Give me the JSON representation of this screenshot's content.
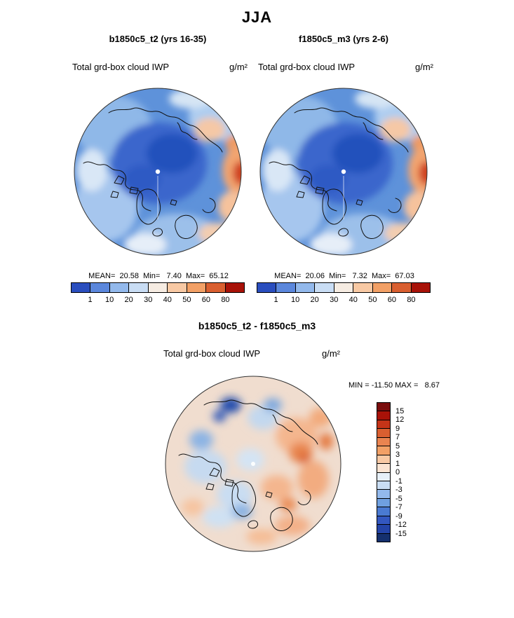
{
  "title": "JJA",
  "panels": [
    {
      "title": "b1850c5_t2 (yrs 16-35)",
      "field": "Total grd-box cloud IWP",
      "units": "g/m²",
      "stats": "MEAN=  20.58  Min=   7.40  Max=  65.12"
    },
    {
      "title": "f1850c5_m3 (yrs 2-6)",
      "field": "Total grd-box cloud IWP",
      "units": "g/m²",
      "stats": "MEAN=  20.06  Min=   7.32  Max=  67.03"
    }
  ],
  "colorbar": {
    "ticks": [
      "1",
      "10",
      "20",
      "30",
      "40",
      "50",
      "60",
      "80"
    ],
    "colors": [
      "#2a4ebe",
      "#5b87dc",
      "#93b9ec",
      "#c9ddf4",
      "#f6ece2",
      "#f8c9a4",
      "#f2a066",
      "#d95f30",
      "#a81208"
    ]
  },
  "diff": {
    "title": "b1850c5_t2 - f1850c5_m3",
    "field": "Total grd-box cloud IWP",
    "units": "g/m²",
    "minmax": "MIN = -11.50 MAX =   8.67",
    "colorbar": {
      "ticks": [
        "15",
        "12",
        "9",
        "7",
        "5",
        "3",
        "1",
        "0",
        "-1",
        "-3",
        "-5",
        "-7",
        "-9",
        "-12",
        "-15"
      ],
      "colors": [
        "#7a0d0d",
        "#a81208",
        "#c53418",
        "#d95f30",
        "#ea8450",
        "#f2a066",
        "#f8c9a4",
        "#fbe4d2",
        "#e7f0f8",
        "#c9ddf4",
        "#93b9ec",
        "#6fa0e0",
        "#4a7ad2",
        "#3357c0",
        "#2444a8",
        "#15306e"
      ]
    }
  },
  "chart_data": [
    {
      "type": "heatmap",
      "projection": "north polar stereographic",
      "season": "JJA",
      "title": "b1850c5_t2 (yrs 16-35)",
      "variable": "Total grd-box cloud IWP",
      "units": "g/m2",
      "stats": {
        "mean": 20.58,
        "min": 7.4,
        "max": 65.12
      },
      "contour_levels": [
        1,
        10,
        20,
        30,
        40,
        50,
        60,
        80
      ],
      "palette": "blue (low) to dark red (high), 9 classes",
      "legend_position": "bottom horizontal"
    },
    {
      "type": "heatmap",
      "projection": "north polar stereographic",
      "season": "JJA",
      "title": "f1850c5_m3 (yrs 2-6)",
      "variable": "Total grd-box cloud IWP",
      "units": "g/m2",
      "stats": {
        "mean": 20.06,
        "min": 7.32,
        "max": 67.03
      },
      "contour_levels": [
        1,
        10,
        20,
        30,
        40,
        50,
        60,
        80
      ],
      "palette": "blue (low) to dark red (high), 9 classes",
      "legend_position": "bottom horizontal"
    },
    {
      "type": "heatmap",
      "projection": "north polar stereographic",
      "season": "JJA",
      "title": "b1850c5_t2 - f1850c5_m3",
      "variable": "Total grd-box cloud IWP difference",
      "units": "g/m2",
      "stats": {
        "min": -11.5,
        "max": 8.67
      },
      "contour_levels": [
        -15,
        -12,
        -9,
        -7,
        -5,
        -3,
        -1,
        0,
        1,
        3,
        5,
        7,
        9,
        12,
        15
      ],
      "palette": "dark red (positive, top) to dark blue (negative, bottom), 16 classes",
      "legend_position": "right vertical"
    }
  ]
}
